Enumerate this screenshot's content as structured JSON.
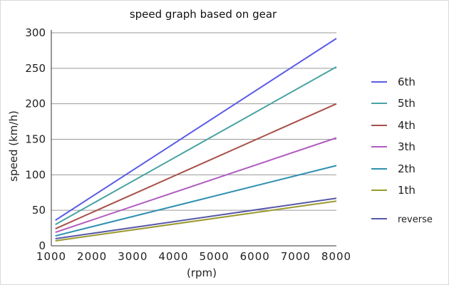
{
  "chart_data": {
    "type": "line",
    "title": "speed graph based on gear",
    "xlabel": "(rpm)",
    "ylabel": "speed  (km/h)",
    "x": [
      1000,
      8000
    ],
    "xticks": [
      "1000",
      "2000",
      "3000",
      "4000",
      "5000",
      "6000",
      "7000",
      "8000"
    ],
    "yticks": [
      "0",
      "50",
      "100",
      "150",
      "200",
      "250",
      "300"
    ],
    "xlim": [
      1000,
      8000
    ],
    "ylim": [
      0,
      300
    ],
    "grid": "horizontal",
    "legend": "right",
    "series": [
      {
        "name": "6th",
        "color": "#5b5ce6",
        "values": [
          36,
          292
        ]
      },
      {
        "name": "5th",
        "color": "#4aa3a3",
        "values": [
          30,
          252
        ]
      },
      {
        "name": "4th",
        "color": "#a8504a",
        "values": [
          24,
          200
        ]
      },
      {
        "name": "3th",
        "color": "#b05cc0",
        "values": [
          19,
          152
        ]
      },
      {
        "name": "2th",
        "color": "#2e90b0",
        "values": [
          14,
          113
        ]
      },
      {
        "name": "1th",
        "color": "#9a9a2e",
        "values": [
          7,
          63
        ]
      },
      {
        "name": "reverse",
        "color": "#5858a8",
        "values": [
          10,
          67
        ]
      }
    ]
  }
}
